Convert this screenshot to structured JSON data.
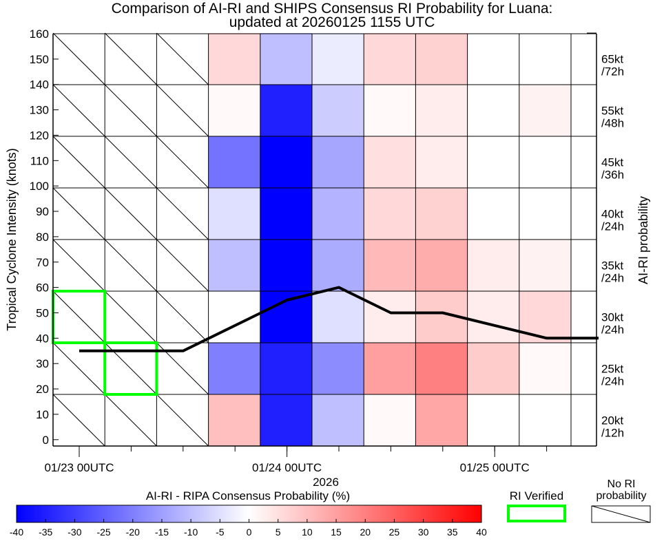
{
  "title_line1": "Comparison of AI-RI and SHIPS Consensus RI Probability for Luana:",
  "title_line2": "updated at 20260125 1155 UTC",
  "ylabel": "Tropical Cyclone Intensity (knots)",
  "right_label": "AI-RI probability",
  "xlabel": "2026",
  "legend": {
    "colorbar_title": "AI-RI - RIPA Consensus Probability (%)",
    "colorbar_ticks": [
      "-40",
      "-35",
      "-30",
      "-25",
      "-20",
      "-15",
      "-10",
      "-5",
      "0",
      "5",
      "10",
      "15",
      "20",
      "25",
      "30",
      "35",
      "40"
    ],
    "verified_label": "RI Verified",
    "no_ri_label_line1": "No RI",
    "no_ri_label_line2": "probability"
  },
  "colors": {
    "negative": "#0000ff",
    "positive": "#ff0000",
    "track": "#000000",
    "verified": "#00ff00"
  },
  "chart_data": {
    "type": "heatmap",
    "title": "Comparison of AI-RI and SHIPS Consensus RI Probability for Luana: updated at 20260125 1155 UTC",
    "xlabel": "2026",
    "ylabel": "Tropical Cyclone Intensity (knots)",
    "ylim": [
      -2.5,
      160
    ],
    "y_ticks": [
      "0",
      "10",
      "20",
      "30",
      "40",
      "50",
      "60",
      "70",
      "80",
      "90",
      "100",
      "110",
      "120",
      "130",
      "140",
      "150",
      "160"
    ],
    "x_ticks": [
      "01/23 00UTC",
      "01/24 00UTC",
      "01/25 00UTC"
    ],
    "x_tick_times_h": [
      0,
      24,
      48
    ],
    "columns_time_h": [
      0,
      6,
      12,
      18,
      24,
      30,
      36,
      42,
      48,
      54
    ],
    "rows_thresholds": [
      {
        "label": "20kt /12h",
        "line1": "20kt",
        "line2": "/12h"
      },
      {
        "label": "25kt /24h",
        "line1": "25kt",
        "line2": "/24h"
      },
      {
        "label": "30kt /24h",
        "line1": "30kt",
        "line2": "/24h"
      },
      {
        "label": "35kt /24h",
        "line1": "35kt",
        "line2": "/24h"
      },
      {
        "label": "40kt /24h",
        "line1": "40kt",
        "line2": "/24h"
      },
      {
        "label": "45kt /36h",
        "line1": "45kt",
        "line2": "/36h"
      },
      {
        "label": "55kt /48h",
        "line1": "55kt",
        "line2": "/48h"
      },
      {
        "label": "65kt /72h",
        "line1": "65kt",
        "line2": "/72h"
      }
    ],
    "cell_values_percent": [
      [
        null,
        null,
        null,
        10,
        -35,
        -10,
        1,
        14,
        0,
        0
      ],
      [
        null,
        null,
        null,
        -20,
        -35,
        -18,
        15,
        20,
        8,
        1
      ],
      [
        null,
        null,
        null,
        0,
        -40,
        -5,
        3,
        8,
        3,
        6
      ],
      [
        null,
        null,
        null,
        -10,
        -40,
        -13,
        11,
        13,
        3,
        2
      ],
      [
        null,
        null,
        null,
        -5,
        -40,
        -12,
        6,
        7,
        0,
        0
      ],
      [
        null,
        null,
        null,
        -22,
        -40,
        -14,
        5,
        3,
        0,
        0
      ],
      [
        null,
        null,
        null,
        1,
        -35,
        -8,
        1,
        3,
        0,
        2
      ],
      [
        null,
        null,
        null,
        6,
        -10,
        -3,
        6,
        7,
        0,
        0
      ]
    ],
    "ri_verified_cells": [
      [
        1,
        1
      ],
      [
        2,
        0
      ]
    ],
    "track_intensity_kt": {
      "time_h": [
        0,
        12,
        24,
        30,
        36,
        42,
        48,
        54,
        60
      ],
      "values": [
        35,
        35,
        55,
        60,
        50,
        50,
        45,
        40,
        40
      ]
    },
    "colorbar": {
      "min": -40,
      "max": 40,
      "unit": "%"
    },
    "legend": [
      "RI Verified",
      "No RI probability"
    ]
  }
}
